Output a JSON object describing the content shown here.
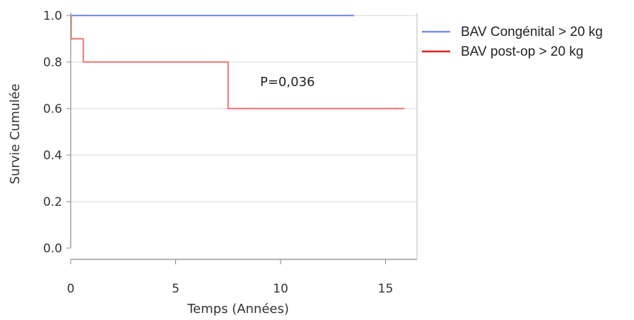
{
  "chart_data": {
    "type": "line",
    "step": true,
    "xlabel": "Temps (Années)",
    "ylabel": "Survie Cumulée",
    "xlim": [
      0,
      16.5
    ],
    "ylim": [
      0,
      1
    ],
    "xticks": [
      "0",
      "5",
      "10",
      "15"
    ],
    "xtick_values": [
      0,
      5,
      10,
      15
    ],
    "yticks": [
      "0.0",
      "0.2",
      "0.4",
      "0.6",
      "0.8",
      "1.0"
    ],
    "ytick_values": [
      0,
      0.2,
      0.4,
      0.6,
      0.8,
      1.0
    ],
    "grid": "horizontal",
    "legend_position": "top-right",
    "annotation": "P=0,036",
    "series": [
      {
        "name": "BAV Congénital > 20 kg",
        "color": "#7a8fe8",
        "legend_color": "#7a8fe8",
        "x": [
          0,
          13.5
        ],
        "y": [
          1.0,
          1.0
        ]
      },
      {
        "name": "BAV post-op > 20 kg",
        "color": "#f08080",
        "legend_color": "#e02020",
        "x": [
          0,
          0.02,
          0.6,
          7.5,
          15.9
        ],
        "y": [
          1.0,
          0.9,
          0.8,
          0.6,
          0.6
        ]
      }
    ]
  }
}
